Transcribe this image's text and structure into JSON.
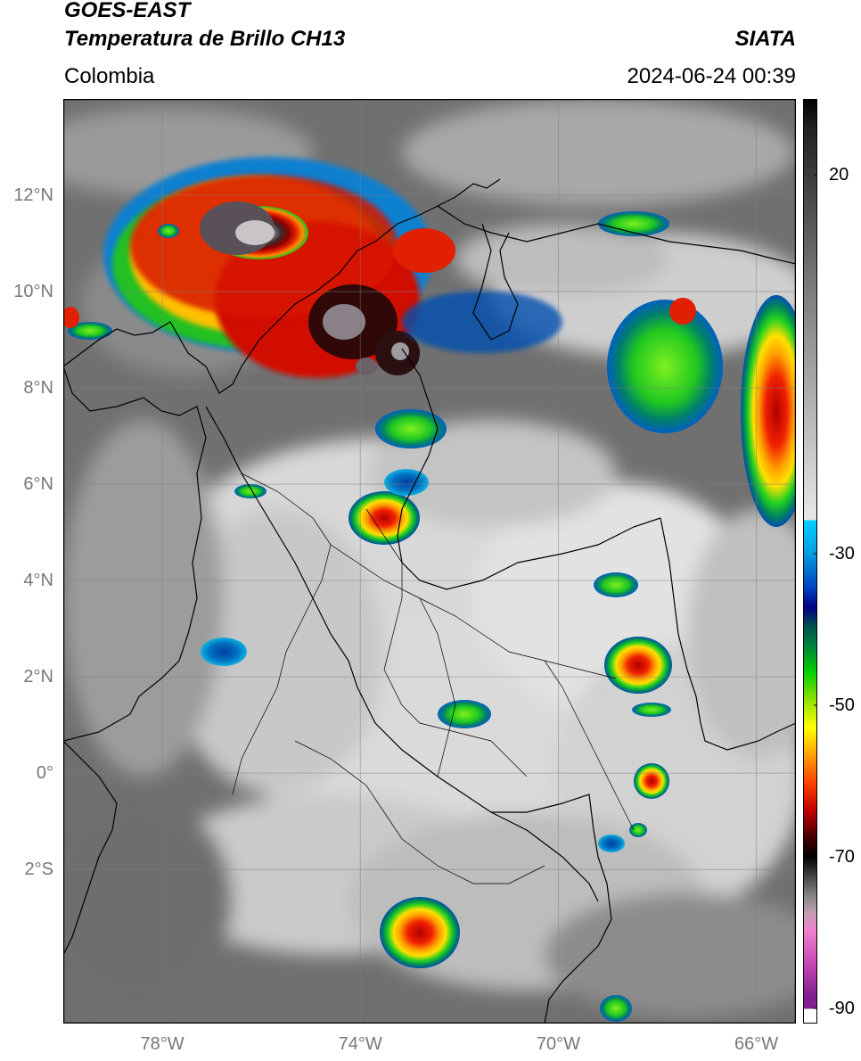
{
  "header": {
    "satellite": "GOES-EAST",
    "product": "Temperatura de Brillo CH13",
    "organization": "SIATA",
    "region": "Colombia",
    "datetime": "2024-06-24 00:39"
  },
  "map": {
    "lon_range": [
      -80,
      -65.2
    ],
    "lat_range": [
      -5.2,
      14
    ],
    "lat_ticks": [
      {
        "value": 12,
        "label": "12°N"
      },
      {
        "value": 10,
        "label": "10°N"
      },
      {
        "value": 8,
        "label": "8°N"
      },
      {
        "value": 6,
        "label": "6°N"
      },
      {
        "value": 4,
        "label": "4°N"
      },
      {
        "value": 2,
        "label": "2°N"
      },
      {
        "value": 0,
        "label": "0°"
      },
      {
        "value": -2,
        "label": "2°S"
      }
    ],
    "lon_ticks": [
      {
        "value": -78,
        "label": "78°W"
      },
      {
        "value": -74,
        "label": "74°W"
      },
      {
        "value": -70,
        "label": "70°W"
      },
      {
        "value": -66,
        "label": "66°W"
      }
    ],
    "grid": true,
    "colors": {
      "cloud_light": "#e8e8e8",
      "background_dark": "#6a6a6a",
      "border": "#000000"
    }
  },
  "colorbar": {
    "range": [
      -92,
      30
    ],
    "ticks": [
      {
        "value": 20,
        "label": "20"
      },
      {
        "value": -30,
        "label": "-30"
      },
      {
        "value": -50,
        "label": "-50"
      },
      {
        "value": -70,
        "label": "-70"
      },
      {
        "value": -90,
        "label": "-90"
      }
    ]
  }
}
